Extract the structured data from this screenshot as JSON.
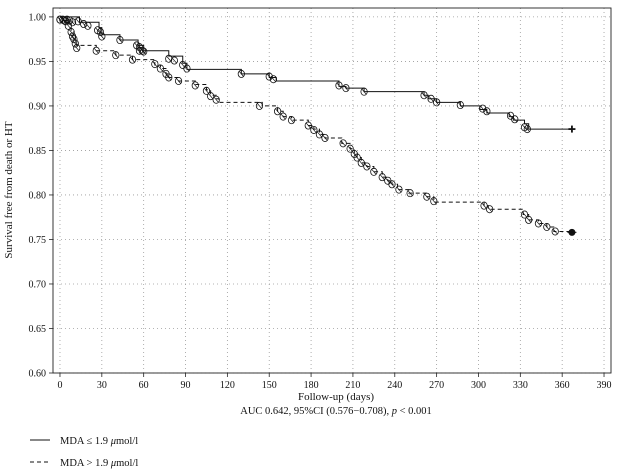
{
  "chart_data": {
    "type": "line",
    "subtype": "kaplan-meier",
    "title": "",
    "xlabel": "Follow-up (days)",
    "ylabel": "Survival free from death or HT",
    "caption": {
      "prefix": "AUC 0.642, 95%CI (0.576−0.708), ",
      "p_symbol": "p",
      "suffix": " < 0.001"
    },
    "xlim": [
      -5,
      395
    ],
    "ylim": [
      0.6,
      1.01
    ],
    "xticks": [
      0,
      30,
      60,
      90,
      120,
      150,
      180,
      210,
      240,
      270,
      300,
      330,
      360,
      390
    ],
    "xtick_labels": [
      "0",
      "30",
      "60",
      "90",
      "120",
      "150",
      "180",
      "210",
      "240",
      "270",
      "300",
      "330",
      "360",
      "390"
    ],
    "yticks": [
      0.6,
      0.65,
      0.7,
      0.75,
      0.8,
      0.85,
      0.9,
      0.95,
      1.0
    ],
    "ytick_labels": [
      "0.60",
      "0.65",
      "0.70",
      "0.75",
      "0.80",
      "0.85",
      "0.90",
      "0.95",
      "1.00"
    ],
    "grid": true,
    "legend_position": "bottom-left",
    "series": [
      {
        "name": "MDA ≤ 1.9 μmol/l",
        "legend_prefix": "MDA ≤ 1.9 ",
        "legend_unit_greek": "μ",
        "legend_unit_rest": "mol/l",
        "line_style": "solid",
        "color": "#111111",
        "steps": [
          [
            0,
            1.0
          ],
          [
            14,
            0.994
          ],
          [
            28,
            0.988
          ],
          [
            30,
            0.98
          ],
          [
            43,
            0.974
          ],
          [
            56,
            0.968
          ],
          [
            60,
            0.962
          ],
          [
            78,
            0.956
          ],
          [
            88,
            0.948
          ],
          [
            91,
            0.941
          ],
          [
            130,
            0.936
          ],
          [
            150,
            0.932
          ],
          [
            155,
            0.928
          ],
          [
            200,
            0.922
          ],
          [
            205,
            0.92
          ],
          [
            218,
            0.916
          ],
          [
            261,
            0.912
          ],
          [
            264,
            0.908
          ],
          [
            270,
            0.904
          ],
          [
            287,
            0.9
          ],
          [
            301,
            0.896
          ],
          [
            306,
            0.892
          ],
          [
            322,
            0.888
          ],
          [
            325,
            0.884
          ],
          [
            333,
            0.88
          ],
          [
            336,
            0.874
          ]
        ],
        "end_x": 367,
        "censored": [
          [
            0,
            0.997
          ],
          [
            3,
            0.996
          ],
          [
            5,
            0.997
          ],
          [
            7,
            0.996
          ],
          [
            9,
            0.994
          ],
          [
            13,
            0.995
          ],
          [
            17,
            0.992
          ],
          [
            20,
            0.99
          ],
          [
            27,
            0.985
          ],
          [
            29,
            0.983
          ],
          [
            30,
            0.978
          ],
          [
            43,
            0.974
          ],
          [
            55,
            0.968
          ],
          [
            57,
            0.966
          ],
          [
            59,
            0.962
          ],
          [
            60,
            0.961
          ],
          [
            78,
            0.953
          ],
          [
            82,
            0.951
          ],
          [
            88,
            0.946
          ],
          [
            91,
            0.942
          ],
          [
            130,
            0.936
          ],
          [
            150,
            0.933
          ],
          [
            153,
            0.93
          ],
          [
            200,
            0.923
          ],
          [
            205,
            0.92
          ],
          [
            218,
            0.916
          ],
          [
            261,
            0.912
          ],
          [
            266,
            0.908
          ],
          [
            270,
            0.904
          ],
          [
            287,
            0.901
          ],
          [
            303,
            0.897
          ],
          [
            306,
            0.894
          ],
          [
            323,
            0.889
          ],
          [
            326,
            0.885
          ],
          [
            333,
            0.876
          ],
          [
            335,
            0.874
          ]
        ],
        "end_marker": [
          367,
          0.874
        ]
      },
      {
        "name": "MDA > 1.9 μmol/l",
        "legend_prefix": "MDA > 1.9 ",
        "legend_unit_greek": "μ",
        "legend_unit_rest": "mol/l",
        "line_style": "dashed",
        "color": "#111111",
        "steps": [
          [
            0,
            1.0
          ],
          [
            3,
            0.996
          ],
          [
            6,
            0.992
          ],
          [
            8,
            0.985
          ],
          [
            10,
            0.978
          ],
          [
            11,
            0.972
          ],
          [
            12,
            0.968
          ],
          [
            26,
            0.962
          ],
          [
            40,
            0.957
          ],
          [
            52,
            0.952
          ],
          [
            68,
            0.946
          ],
          [
            72,
            0.942
          ],
          [
            76,
            0.936
          ],
          [
            78,
            0.932
          ],
          [
            85,
            0.928
          ],
          [
            97,
            0.924
          ],
          [
            105,
            0.918
          ],
          [
            108,
            0.912
          ],
          [
            112,
            0.908
          ],
          [
            114,
            0.904
          ],
          [
            145,
            0.9
          ],
          [
            156,
            0.894
          ],
          [
            160,
            0.888
          ],
          [
            166,
            0.884
          ],
          [
            178,
            0.878
          ],
          [
            182,
            0.874
          ],
          [
            186,
            0.868
          ],
          [
            190,
            0.864
          ],
          [
            202,
            0.858
          ],
          [
            208,
            0.852
          ],
          [
            211,
            0.846
          ],
          [
            213,
            0.842
          ],
          [
            216,
            0.836
          ],
          [
            220,
            0.832
          ],
          [
            225,
            0.826
          ],
          [
            231,
            0.82
          ],
          [
            235,
            0.816
          ],
          [
            238,
            0.812
          ],
          [
            242,
            0.806
          ],
          [
            250,
            0.802
          ],
          [
            263,
            0.798
          ],
          [
            268,
            0.792
          ],
          [
            304,
            0.788
          ],
          [
            307,
            0.784
          ],
          [
            332,
            0.778
          ],
          [
            336,
            0.772
          ],
          [
            343,
            0.768
          ],
          [
            349,
            0.764
          ],
          [
            354,
            0.759
          ]
        ],
        "end_x": 367,
        "censored": [
          [
            0,
            0.997
          ],
          [
            2,
            0.997
          ],
          [
            4,
            0.995
          ],
          [
            6,
            0.99
          ],
          [
            8,
            0.983
          ],
          [
            9,
            0.978
          ],
          [
            10,
            0.975
          ],
          [
            11,
            0.97
          ],
          [
            12,
            0.965
          ],
          [
            26,
            0.962
          ],
          [
            40,
            0.957
          ],
          [
            52,
            0.952
          ],
          [
            57,
            0.962
          ],
          [
            68,
            0.947
          ],
          [
            72,
            0.942
          ],
          [
            76,
            0.936
          ],
          [
            78,
            0.932
          ],
          [
            85,
            0.928
          ],
          [
            97,
            0.923
          ],
          [
            105,
            0.917
          ],
          [
            108,
            0.911
          ],
          [
            112,
            0.907
          ],
          [
            143,
            0.9
          ],
          [
            156,
            0.894
          ],
          [
            160,
            0.888
          ],
          [
            166,
            0.884
          ],
          [
            178,
            0.878
          ],
          [
            182,
            0.873
          ],
          [
            186,
            0.868
          ],
          [
            190,
            0.864
          ],
          [
            203,
            0.858
          ],
          [
            208,
            0.852
          ],
          [
            211,
            0.846
          ],
          [
            213,
            0.842
          ],
          [
            216,
            0.836
          ],
          [
            220,
            0.832
          ],
          [
            225,
            0.826
          ],
          [
            231,
            0.82
          ],
          [
            235,
            0.816
          ],
          [
            238,
            0.812
          ],
          [
            243,
            0.806
          ],
          [
            251,
            0.802
          ],
          [
            263,
            0.798
          ],
          [
            268,
            0.793
          ],
          [
            304,
            0.788
          ],
          [
            308,
            0.784
          ],
          [
            333,
            0.778
          ],
          [
            336,
            0.772
          ],
          [
            343,
            0.768
          ],
          [
            349,
            0.764
          ],
          [
            355,
            0.759
          ]
        ],
        "end_marker": [
          367,
          0.758
        ]
      }
    ]
  }
}
